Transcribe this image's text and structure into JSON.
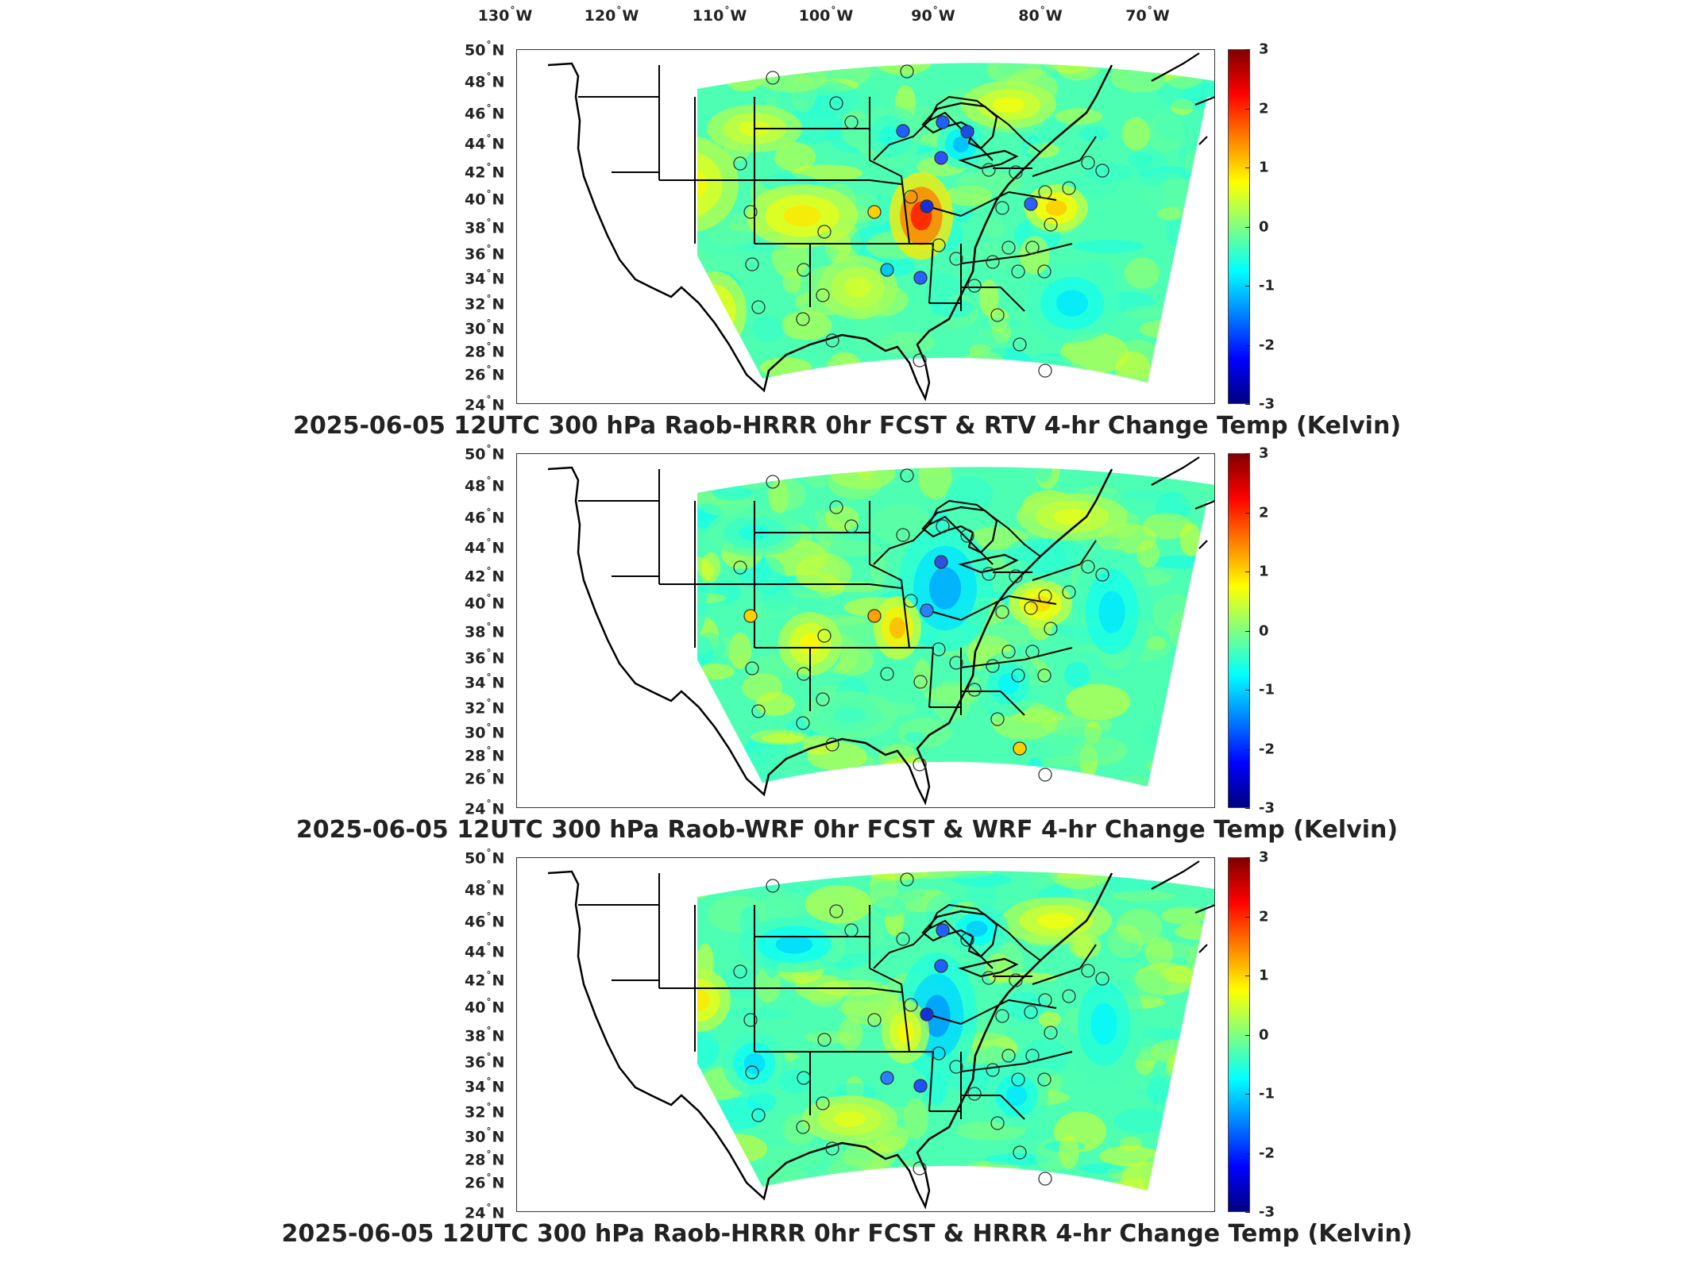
{
  "longitude_labels": [
    "130",
    "120",
    "110",
    "100",
    "90",
    "80",
    "70"
  ],
  "longitude_suffix": "W",
  "latitude_labels": [
    "50",
    "48",
    "46",
    "44",
    "42",
    "40",
    "38",
    "36",
    "34",
    "32",
    "30",
    "28",
    "26",
    "24"
  ],
  "latitude_suffix": "N",
  "colorbar": {
    "ticks": [
      "3",
      "2",
      "1",
      "0",
      "-1",
      "-2",
      "-3"
    ],
    "range": [
      -3,
      3
    ],
    "colormap": "jet"
  },
  "colors": {
    "land_outline": "#000000",
    "field_base": "#5fe0b0",
    "station_marker": "#333333"
  },
  "panels": [
    {
      "title": "2025-06-05 12UTC 300 hPa Raob-HRRR 0hr FCST & RTV 4-hr Change Temp (Kelvin)",
      "variant": 0
    },
    {
      "title": "2025-06-05 12UTC 300 hPa Raob-WRF 0hr FCST & WRF 4-hr Change Temp (Kelvin)",
      "variant": 1
    },
    {
      "title": "2025-06-05 12UTC 300 hPa Raob-HRRR 0hr FCST & HRRR 4-hr Change Temp (Kelvin)",
      "variant": 2
    }
  ]
}
